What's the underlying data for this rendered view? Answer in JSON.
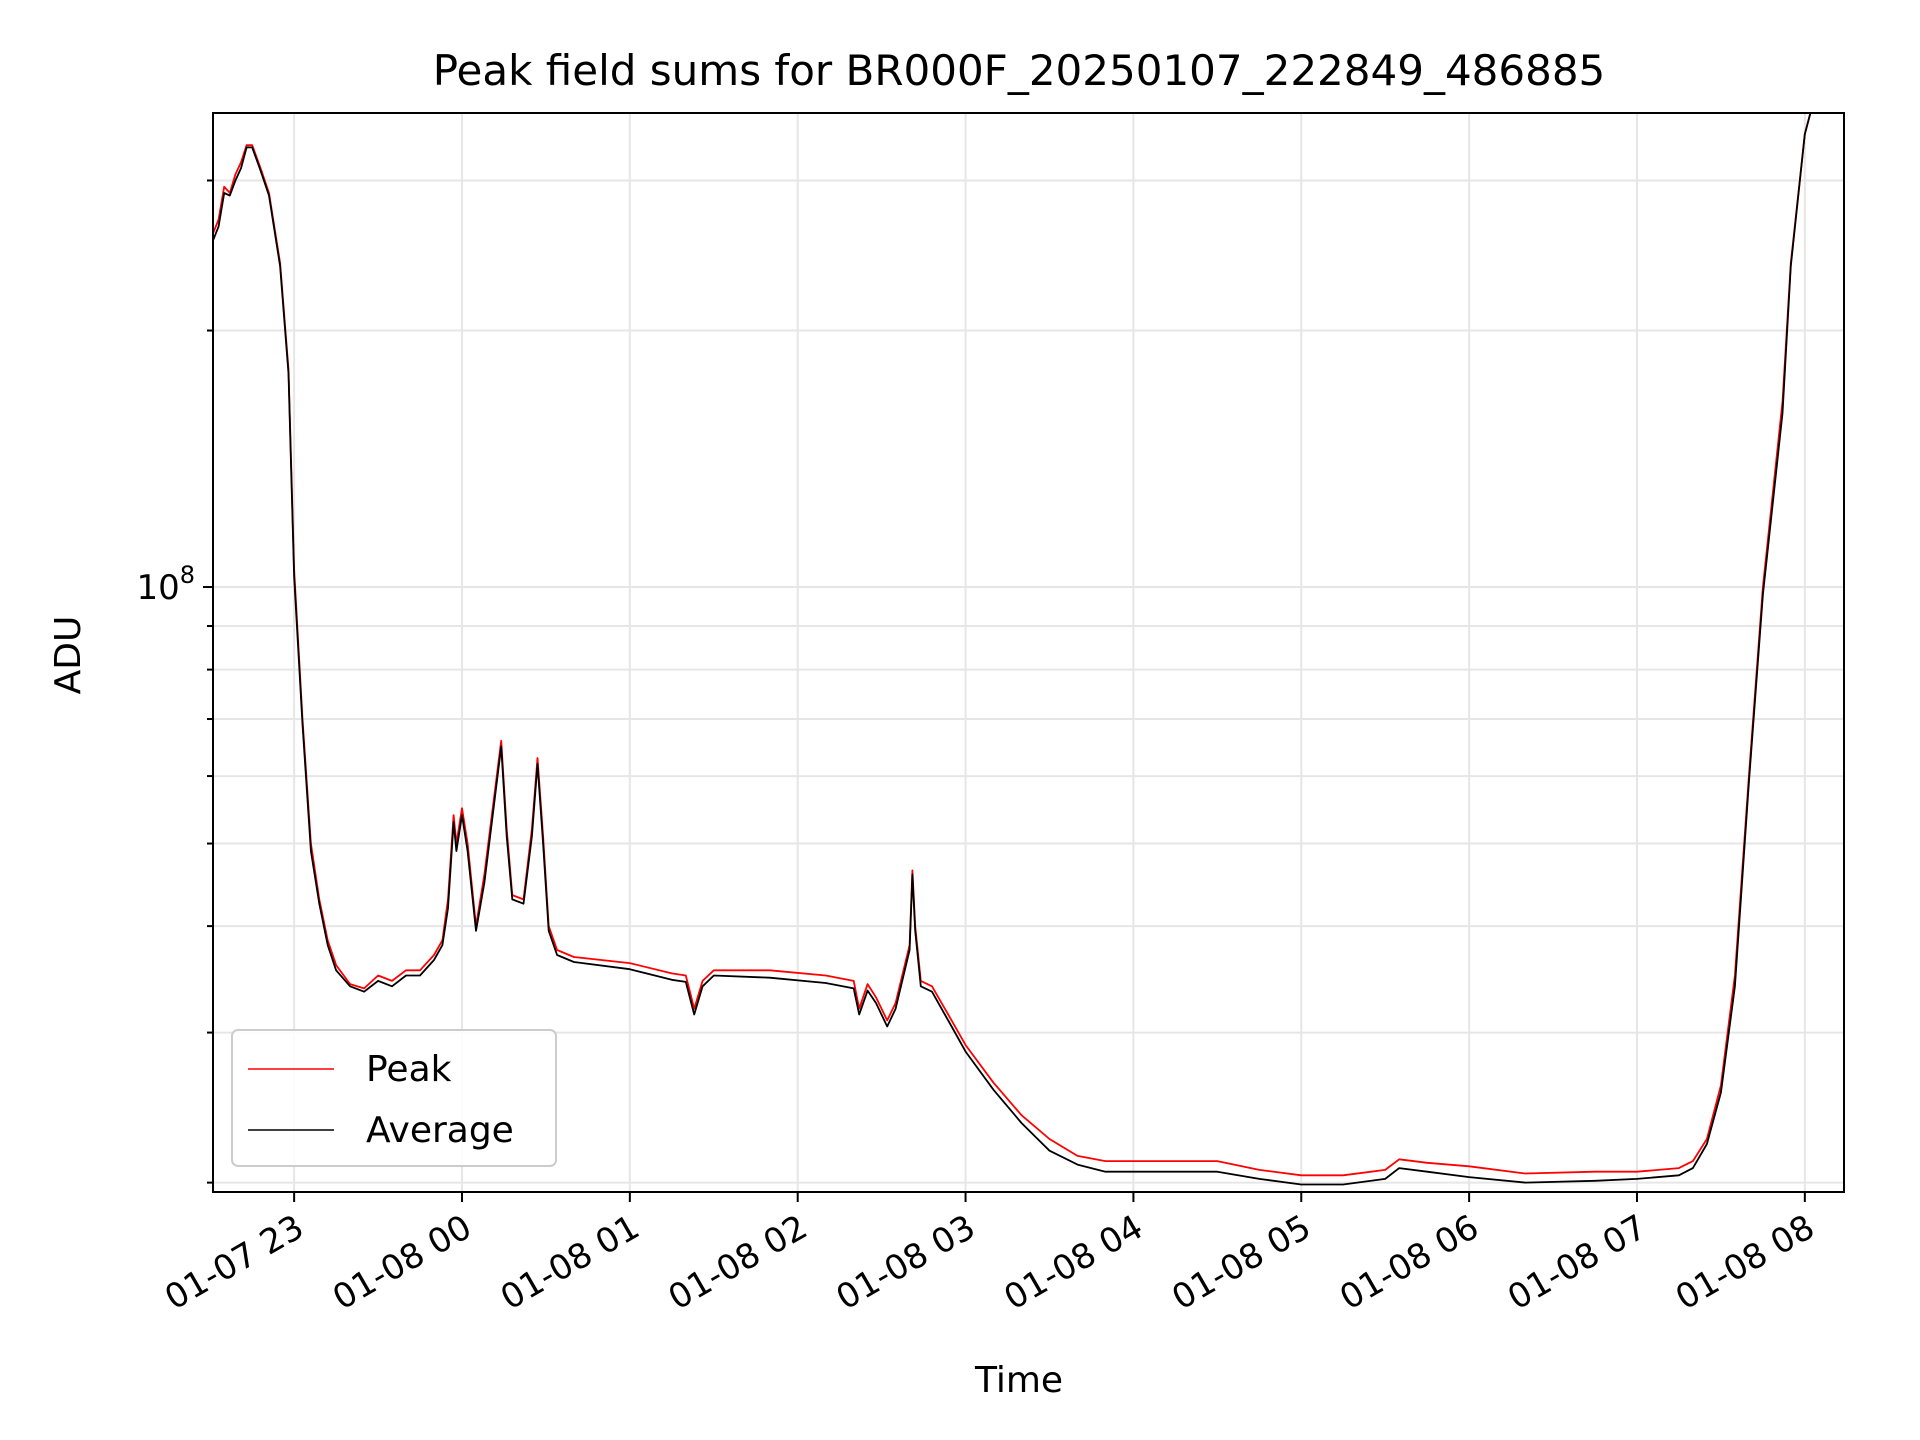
{
  "chart_data": {
    "type": "line",
    "title": "Peak field sums for BR000F_20250107_222849_486885",
    "xlabel": "Time",
    "ylabel": "ADU",
    "y_scale": "log",
    "x_ticks": [
      "01-07 23",
      "01-08 00",
      "01-08 01",
      "01-08 02",
      "01-08 03",
      "01-08 04",
      "01-08 05",
      "01-08 06",
      "01-08 07",
      "01-08 08"
    ],
    "y_tick_labels": [
      {
        "base": "10",
        "exp": "8"
      }
    ],
    "xlim": [
      "2025-01-07 22:31",
      "2025-01-08 08:14"
    ],
    "ylim": [
      19500000.0,
      360000000.0
    ],
    "grid": true,
    "legend_position": "lower-left",
    "series": [
      {
        "name": "Peak",
        "color": "#ff0000",
        "points": [
          [
            "2025-01-07 22:31",
            260000000.0
          ],
          [
            "2025-01-07 22:33",
            270000000.0
          ],
          [
            "2025-01-07 22:35",
            295000000.0
          ],
          [
            "2025-01-07 22:37",
            290000000.0
          ],
          [
            "2025-01-07 22:39",
            305000000.0
          ],
          [
            "2025-01-07 22:41",
            315000000.0
          ],
          [
            "2025-01-07 22:43",
            330000000.0
          ],
          [
            "2025-01-07 22:45",
            330000000.0
          ],
          [
            "2025-01-07 22:48",
            310000000.0
          ],
          [
            "2025-01-07 22:51",
            290000000.0
          ],
          [
            "2025-01-07 22:55",
            240000000.0
          ],
          [
            "2025-01-07 22:58",
            180000000.0
          ],
          [
            "2025-01-07 23:00",
            105000000.0
          ],
          [
            "2025-01-07 23:03",
            70000000.0
          ],
          [
            "2025-01-07 23:06",
            50000000.0
          ],
          [
            "2025-01-07 23:09",
            43000000.0
          ],
          [
            "2025-01-07 23:12",
            38500000.0
          ],
          [
            "2025-01-07 23:15",
            36000000.0
          ],
          [
            "2025-01-07 23:20",
            34200000.0
          ],
          [
            "2025-01-07 23:25",
            33800000.0
          ],
          [
            "2025-01-07 23:30",
            35000000.0
          ],
          [
            "2025-01-07 23:35",
            34500000.0
          ],
          [
            "2025-01-07 23:40",
            35500000.0
          ],
          [
            "2025-01-07 23:45",
            35500000.0
          ],
          [
            "2025-01-07 23:50",
            37000000.0
          ],
          [
            "2025-01-07 23:53",
            38500000.0
          ],
          [
            "2025-01-07 23:55",
            43000000.0
          ],
          [
            "2025-01-07 23:57",
            54000000.0
          ],
          [
            "2025-01-07 23:58",
            50000000.0
          ],
          [
            "2025-01-08 00:00",
            55000000.0
          ],
          [
            "2025-01-08 00:02",
            50000000.0
          ],
          [
            "2025-01-08 00:05",
            40000000.0
          ],
          [
            "2025-01-08 00:08",
            46000000.0
          ],
          [
            "2025-01-08 00:14",
            66000000.0
          ],
          [
            "2025-01-08 00:16",
            52000000.0
          ],
          [
            "2025-01-08 00:18",
            43500000.0
          ],
          [
            "2025-01-08 00:22",
            43000000.0
          ],
          [
            "2025-01-08 00:25",
            52000000.0
          ],
          [
            "2025-01-08 00:27",
            63000000.0
          ],
          [
            "2025-01-08 00:29",
            51000000.0
          ],
          [
            "2025-01-08 00:31",
            40000000.0
          ],
          [
            "2025-01-08 00:34",
            37500000.0
          ],
          [
            "2025-01-08 00:40",
            36800000.0
          ],
          [
            "2025-01-08 01:00",
            36200000.0
          ],
          [
            "2025-01-08 01:15",
            35200000.0
          ],
          [
            "2025-01-08 01:20",
            35000000.0
          ],
          [
            "2025-01-08 01:23",
            32000000.0
          ],
          [
            "2025-01-08 01:26",
            34500000.0
          ],
          [
            "2025-01-08 01:30",
            35500000.0
          ],
          [
            "2025-01-08 01:50",
            35500000.0
          ],
          [
            "2025-01-08 02:10",
            35000000.0
          ],
          [
            "2025-01-08 02:20",
            34500000.0
          ],
          [
            "2025-01-08 02:22",
            32000000.0
          ],
          [
            "2025-01-08 02:25",
            34200000.0
          ],
          [
            "2025-01-08 02:28",
            33000000.0
          ],
          [
            "2025-01-08 02:32",
            31000000.0
          ],
          [
            "2025-01-08 02:35",
            32500000.0
          ],
          [
            "2025-01-08 02:40",
            38000000.0
          ],
          [
            "2025-01-08 02:41",
            46500000.0
          ],
          [
            "2025-01-08 02:42",
            40000000.0
          ],
          [
            "2025-01-08 02:44",
            34500000.0
          ],
          [
            "2025-01-08 02:48",
            34000000.0
          ],
          [
            "2025-01-08 02:55",
            31000000.0
          ],
          [
            "2025-01-08 03:00",
            29000000.0
          ],
          [
            "2025-01-08 03:10",
            26200000.0
          ],
          [
            "2025-01-08 03:20",
            24000000.0
          ],
          [
            "2025-01-08 03:30",
            22500000.0
          ],
          [
            "2025-01-08 03:40",
            21500000.0
          ],
          [
            "2025-01-08 03:50",
            21200000.0
          ],
          [
            "2025-01-08 04:10",
            21200000.0
          ],
          [
            "2025-01-08 04:30",
            21200000.0
          ],
          [
            "2025-01-08 04:45",
            20700000.0
          ],
          [
            "2025-01-08 05:00",
            20400000.0
          ],
          [
            "2025-01-08 05:15",
            20400000.0
          ],
          [
            "2025-01-08 05:30",
            20700000.0
          ],
          [
            "2025-01-08 05:35",
            21300000.0
          ],
          [
            "2025-01-08 05:45",
            21100000.0
          ],
          [
            "2025-01-08 06:00",
            20900000.0
          ],
          [
            "2025-01-08 06:20",
            20500000.0
          ],
          [
            "2025-01-08 06:45",
            20600000.0
          ],
          [
            "2025-01-08 07:00",
            20600000.0
          ],
          [
            "2025-01-08 07:15",
            20800000.0
          ],
          [
            "2025-01-08 07:20",
            21200000.0
          ],
          [
            "2025-01-08 07:25",
            22500000.0
          ],
          [
            "2025-01-08 07:30",
            26000000.0
          ],
          [
            "2025-01-08 07:35",
            35000000.0
          ],
          [
            "2025-01-08 07:40",
            60000000.0
          ],
          [
            "2025-01-08 07:45",
            100000000.0
          ],
          [
            "2025-01-08 07:52",
            165000000.0
          ],
          [
            "2025-01-08 07:55",
            240000000.0
          ],
          [
            "2025-01-08 08:00",
            340000000.0
          ],
          [
            "2025-01-08 08:02",
            360000000.0
          ]
        ]
      },
      {
        "name": "Average",
        "color": "#000000",
        "points": [
          [
            "2025-01-07 22:31",
            255000000.0
          ],
          [
            "2025-01-07 22:33",
            265000000.0
          ],
          [
            "2025-01-07 22:35",
            290000000.0
          ],
          [
            "2025-01-07 22:37",
            288000000.0
          ],
          [
            "2025-01-07 22:39",
            300000000.0
          ],
          [
            "2025-01-07 22:41",
            310000000.0
          ],
          [
            "2025-01-07 22:43",
            328000000.0
          ],
          [
            "2025-01-07 22:45",
            328000000.0
          ],
          [
            "2025-01-07 22:48",
            308000000.0
          ],
          [
            "2025-01-07 22:51",
            288000000.0
          ],
          [
            "2025-01-07 22:55",
            238000000.0
          ],
          [
            "2025-01-07 22:58",
            178000000.0
          ],
          [
            "2025-01-07 23:00",
            103000000.0
          ],
          [
            "2025-01-07 23:03",
            69000000.0
          ],
          [
            "2025-01-07 23:06",
            49000000.0
          ],
          [
            "2025-01-07 23:09",
            42500000.0
          ],
          [
            "2025-01-07 23:12",
            38000000.0
          ],
          [
            "2025-01-07 23:15",
            35500000.0
          ],
          [
            "2025-01-07 23:20",
            34000000.0
          ],
          [
            "2025-01-07 23:25",
            33500000.0
          ],
          [
            "2025-01-07 23:30",
            34500000.0
          ],
          [
            "2025-01-07 23:35",
            34000000.0
          ],
          [
            "2025-01-07 23:40",
            35000000.0
          ],
          [
            "2025-01-07 23:45",
            35000000.0
          ],
          [
            "2025-01-07 23:50",
            36500000.0
          ],
          [
            "2025-01-07 23:53",
            38000000.0
          ],
          [
            "2025-01-07 23:55",
            42000000.0
          ],
          [
            "2025-01-07 23:57",
            53000000.0
          ],
          [
            "2025-01-07 23:58",
            49000000.0
          ],
          [
            "2025-01-08 00:00",
            54000000.0
          ],
          [
            "2025-01-08 00:02",
            49000000.0
          ],
          [
            "2025-01-08 00:05",
            39500000.0
          ],
          [
            "2025-01-08 00:08",
            45000000.0
          ],
          [
            "2025-01-08 00:14",
            65000000.0
          ],
          [
            "2025-01-08 00:16",
            51000000.0
          ],
          [
            "2025-01-08 00:18",
            43000000.0
          ],
          [
            "2025-01-08 00:22",
            42500000.0
          ],
          [
            "2025-01-08 00:25",
            51000000.0
          ],
          [
            "2025-01-08 00:27",
            62000000.0
          ],
          [
            "2025-01-08 00:29",
            50000000.0
          ],
          [
            "2025-01-08 00:31",
            39500000.0
          ],
          [
            "2025-01-08 00:34",
            37000000.0
          ],
          [
            "2025-01-08 00:40",
            36300000.0
          ],
          [
            "2025-01-08 01:00",
            35600000.0
          ],
          [
            "2025-01-08 01:15",
            34600000.0
          ],
          [
            "2025-01-08 01:20",
            34400000.0
          ],
          [
            "2025-01-08 01:23",
            31500000.0
          ],
          [
            "2025-01-08 01:26",
            34000000.0
          ],
          [
            "2025-01-08 01:30",
            35000000.0
          ],
          [
            "2025-01-08 01:50",
            34800000.0
          ],
          [
            "2025-01-08 02:10",
            34300000.0
          ],
          [
            "2025-01-08 02:20",
            33800000.0
          ],
          [
            "2025-01-08 02:22",
            31500000.0
          ],
          [
            "2025-01-08 02:25",
            33600000.0
          ],
          [
            "2025-01-08 02:28",
            32500000.0
          ],
          [
            "2025-01-08 02:32",
            30500000.0
          ],
          [
            "2025-01-08 02:35",
            32000000.0
          ],
          [
            "2025-01-08 02:40",
            37500000.0
          ],
          [
            "2025-01-08 02:41",
            46000000.0
          ],
          [
            "2025-01-08 02:42",
            39500000.0
          ],
          [
            "2025-01-08 02:44",
            34000000.0
          ],
          [
            "2025-01-08 02:48",
            33500000.0
          ],
          [
            "2025-01-08 02:55",
            30500000.0
          ],
          [
            "2025-01-08 03:00",
            28500000.0
          ],
          [
            "2025-01-08 03:10",
            25700000.0
          ],
          [
            "2025-01-08 03:20",
            23500000.0
          ],
          [
            "2025-01-08 03:30",
            21800000.0
          ],
          [
            "2025-01-08 03:40",
            21000000.0
          ],
          [
            "2025-01-08 03:50",
            20600000.0
          ],
          [
            "2025-01-08 04:10",
            20600000.0
          ],
          [
            "2025-01-08 04:30",
            20600000.0
          ],
          [
            "2025-01-08 04:45",
            20200000.0
          ],
          [
            "2025-01-08 05:00",
            19900000.0
          ],
          [
            "2025-01-08 05:15",
            19900000.0
          ],
          [
            "2025-01-08 05:30",
            20200000.0
          ],
          [
            "2025-01-08 05:35",
            20800000.0
          ],
          [
            "2025-01-08 05:45",
            20600000.0
          ],
          [
            "2025-01-08 06:00",
            20300000.0
          ],
          [
            "2025-01-08 06:20",
            20000000.0
          ],
          [
            "2025-01-08 06:45",
            20100000.0
          ],
          [
            "2025-01-08 07:00",
            20200000.0
          ],
          [
            "2025-01-08 07:15",
            20400000.0
          ],
          [
            "2025-01-08 07:20",
            20800000.0
          ],
          [
            "2025-01-08 07:25",
            22200000.0
          ],
          [
            "2025-01-08 07:30",
            25500000.0
          ],
          [
            "2025-01-08 07:35",
            34000000.0
          ],
          [
            "2025-01-08 07:40",
            59000000.0
          ],
          [
            "2025-01-08 07:45",
            98000000.0
          ],
          [
            "2025-01-08 07:52",
            160000000.0
          ],
          [
            "2025-01-08 07:55",
            238000000.0
          ],
          [
            "2025-01-08 08:00",
            340000000.0
          ],
          [
            "2025-01-08 08:02",
            360000000.0
          ]
        ]
      }
    ]
  }
}
